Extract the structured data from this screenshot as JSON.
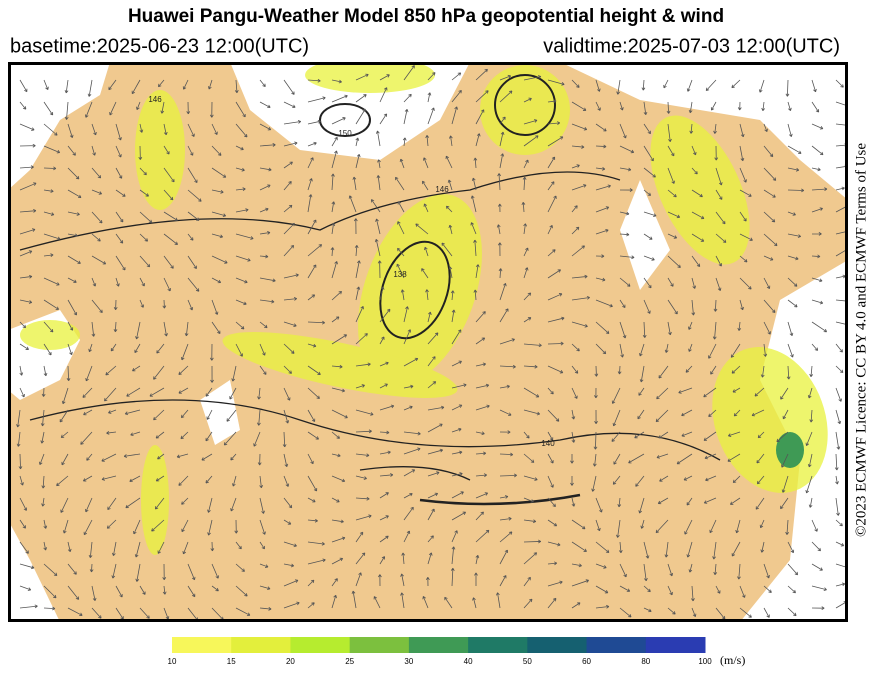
{
  "header": {
    "title": "Huawei Pangu-Weather Model 850 hPa geopotential height & wind",
    "basetime": "basetime:2025-06-23 12:00(UTC)",
    "validtime": "validtime:2025-07-03 12:00(UTC)"
  },
  "credit": "©2023 ECMWF Licence: CC BY 4.0 and ECMWF Terms of Use",
  "contour_labels": [
    "150",
    "146",
    "138",
    "140",
    "146"
  ],
  "colorbar": {
    "colors": [
      "#f7f75a",
      "#e3ef3c",
      "#b6ec2f",
      "#7cc03e",
      "#3f9a55",
      "#1f7a66",
      "#156070",
      "#1f4a94",
      "#2a3cb2"
    ],
    "ticks": [
      10,
      15,
      20,
      25,
      30,
      40,
      50,
      60,
      80,
      100
    ],
    "unit": "(m/s)"
  }
}
